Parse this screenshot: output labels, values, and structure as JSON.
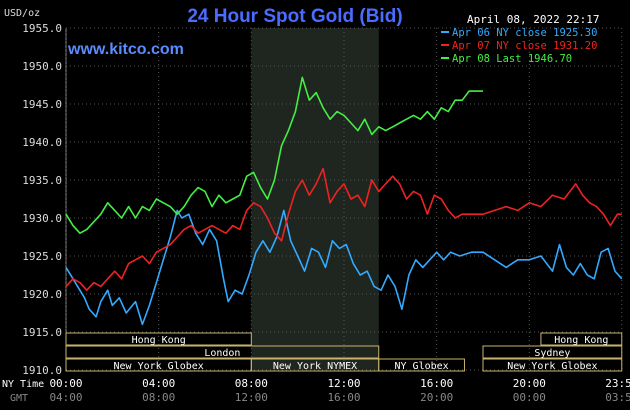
{
  "header": {
    "title": "24 Hour Spot Gold (Bid)",
    "units": "USD/oz",
    "datetime": "April 08, 2022 22:17",
    "watermark": "www.kitco.com"
  },
  "chart_data": {
    "type": "line",
    "title": "24 Hour Spot Gold (Bid)",
    "ylabel": "USD/oz",
    "ylim": [
      1910.0,
      1955.0
    ],
    "yticks": [
      "1955.0",
      "1950.0",
      "1945.0",
      "1940.0",
      "1935.0",
      "1930.0",
      "1925.0",
      "1920.0",
      "1915.0",
      "1910.0"
    ],
    "x_axis": {
      "ny_label": "NY Time",
      "gmt_label": "GMT",
      "ny_ticks": [
        "00:00",
        "04:00",
        "08:00",
        "12:00",
        "16:00",
        "20:00",
        "23:59"
      ],
      "gmt_ticks": [
        "04:00",
        "08:00",
        "12:00",
        "16:00",
        "20:00",
        "00:00",
        "03:59"
      ],
      "range_hours": [
        0,
        24
      ]
    },
    "grid": true,
    "legend_position": "top-right",
    "highlight_band": [
      8.0,
      13.5
    ],
    "series": [
      {
        "name": "Apr 06 NY close 1925.30",
        "color": "#33aaff",
        "x": [
          0,
          0.3,
          0.5,
          0.8,
          1.0,
          1.3,
          1.5,
          1.8,
          2.0,
          2.3,
          2.6,
          3.0,
          3.3,
          3.6,
          3.9,
          4.2,
          4.5,
          4.8,
          5.0,
          5.3,
          5.6,
          5.9,
          6.2,
          6.5,
          6.8,
          7.0,
          7.3,
          7.6,
          7.9,
          8.2,
          8.5,
          8.8,
          9.1,
          9.4,
          9.7,
          10.0,
          10.3,
          10.6,
          10.9,
          11.2,
          11.5,
          11.8,
          12.1,
          12.4,
          12.7,
          13.0,
          13.3,
          13.6,
          13.9,
          14.2,
          14.5,
          14.8,
          15.1,
          15.4,
          15.7,
          16.0,
          16.3,
          16.6,
          17.0,
          17.5,
          18.0,
          18.5,
          19.0,
          19.5,
          20.0,
          20.5,
          21.0,
          21.3,
          21.6,
          21.9,
          22.2,
          22.5,
          22.8,
          23.1,
          23.4,
          23.7,
          23.99
        ],
        "values": [
          1923.5,
          1922.0,
          1921.0,
          1919.5,
          1918.0,
          1917.0,
          1919.0,
          1920.5,
          1918.5,
          1919.5,
          1917.5,
          1919.0,
          1916.0,
          1918.5,
          1921.5,
          1924.5,
          1927.5,
          1931.0,
          1930.0,
          1930.5,
          1928.0,
          1926.5,
          1928.5,
          1927.0,
          1922.0,
          1919.0,
          1920.5,
          1920.0,
          1922.5,
          1925.5,
          1927.0,
          1925.5,
          1927.5,
          1931.0,
          1927.0,
          1925.0,
          1923.0,
          1926.0,
          1925.5,
          1923.5,
          1927.0,
          1926.0,
          1926.5,
          1924.0,
          1922.5,
          1923.0,
          1921.0,
          1920.5,
          1922.5,
          1921.0,
          1918.0,
          1922.5,
          1924.5,
          1923.5,
          1924.5,
          1925.5,
          1924.5,
          1925.5,
          1925.0,
          1925.5,
          1925.5,
          1924.5,
          1923.5,
          1924.5,
          1924.5,
          1925.0,
          1923.0,
          1926.5,
          1923.5,
          1922.5,
          1924.0,
          1922.5,
          1922.0,
          1925.5,
          1926.0,
          1923.0,
          1922.0
        ]
      },
      {
        "name": "Apr 07 NY close 1931.20",
        "color": "#ee2222",
        "x": [
          0,
          0.3,
          0.6,
          0.9,
          1.2,
          1.5,
          1.8,
          2.1,
          2.4,
          2.7,
          3.0,
          3.3,
          3.6,
          3.9,
          4.2,
          4.5,
          4.8,
          5.1,
          5.4,
          5.7,
          6.0,
          6.3,
          6.6,
          6.9,
          7.2,
          7.5,
          7.8,
          8.1,
          8.4,
          8.7,
          9.0,
          9.3,
          9.6,
          9.9,
          10.2,
          10.5,
          10.8,
          11.1,
          11.4,
          11.7,
          12.0,
          12.3,
          12.6,
          12.9,
          13.2,
          13.5,
          13.8,
          14.1,
          14.4,
          14.7,
          15.0,
          15.3,
          15.6,
          15.9,
          16.2,
          16.5,
          16.8,
          17.1,
          17.5,
          18.0,
          18.5,
          19.0,
          19.5,
          20.0,
          20.5,
          21.0,
          21.5,
          22.0,
          22.3,
          22.6,
          22.9,
          23.2,
          23.5,
          23.8,
          23.99
        ],
        "values": [
          1921.0,
          1922.0,
          1921.5,
          1920.5,
          1921.5,
          1921.0,
          1922.0,
          1923.0,
          1922.0,
          1924.0,
          1924.5,
          1925.0,
          1924.0,
          1925.5,
          1926.0,
          1926.5,
          1927.5,
          1928.5,
          1929.0,
          1928.0,
          1928.5,
          1929.0,
          1928.5,
          1928.0,
          1929.0,
          1928.5,
          1931.0,
          1932.0,
          1931.5,
          1930.0,
          1928.0,
          1927.0,
          1930.5,
          1933.5,
          1935.0,
          1933.0,
          1934.5,
          1936.5,
          1932.0,
          1933.5,
          1934.5,
          1932.5,
          1933.0,
          1931.5,
          1935.0,
          1933.5,
          1934.5,
          1935.5,
          1934.5,
          1932.5,
          1933.5,
          1933.0,
          1930.5,
          1933.0,
          1932.5,
          1931.0,
          1930.0,
          1930.5,
          1930.5,
          1930.5,
          1931.0,
          1931.5,
          1931.0,
          1932.0,
          1931.5,
          1933.0,
          1932.5,
          1934.5,
          1933.0,
          1932.0,
          1931.5,
          1930.5,
          1929.0,
          1930.5,
          1930.5
        ]
      },
      {
        "name": "Apr 08 Last 1946.70",
        "color": "#44ee44",
        "x": [
          0,
          0.3,
          0.6,
          0.9,
          1.2,
          1.5,
          1.8,
          2.1,
          2.4,
          2.7,
          3.0,
          3.3,
          3.6,
          3.9,
          4.2,
          4.5,
          4.8,
          5.1,
          5.4,
          5.7,
          6.0,
          6.3,
          6.6,
          6.9,
          7.2,
          7.5,
          7.8,
          8.1,
          8.4,
          8.7,
          9.0,
          9.3,
          9.6,
          9.9,
          10.2,
          10.5,
          10.8,
          11.1,
          11.4,
          11.7,
          12.0,
          12.3,
          12.6,
          12.9,
          13.2,
          13.5,
          13.8,
          14.1,
          14.4,
          14.7,
          15.0,
          15.3,
          15.6,
          15.9,
          16.2,
          16.5,
          16.8,
          17.1,
          17.4,
          17.7,
          18.0
        ],
        "values": [
          1930.5,
          1929.0,
          1928.0,
          1928.5,
          1929.5,
          1930.5,
          1932.0,
          1931.0,
          1930.0,
          1931.5,
          1930.0,
          1931.5,
          1931.0,
          1932.5,
          1932.0,
          1931.5,
          1930.5,
          1931.5,
          1933.0,
          1934.0,
          1933.5,
          1931.5,
          1933.0,
          1932.0,
          1932.5,
          1933.0,
          1935.5,
          1936.0,
          1934.0,
          1932.5,
          1935.0,
          1939.5,
          1941.5,
          1944.0,
          1948.5,
          1945.5,
          1946.5,
          1944.5,
          1943.0,
          1944.0,
          1943.5,
          1942.5,
          1941.5,
          1943.0,
          1941.0,
          1942.0,
          1941.5,
          1942.0,
          1942.5,
          1943.0,
          1943.5,
          1943.0,
          1944.0,
          1943.0,
          1944.5,
          1944.0,
          1945.5,
          1945.5,
          1946.7,
          1946.7,
          1946.7
        ]
      }
    ],
    "sessions": [
      {
        "name": "Hong Kong",
        "start": 0,
        "end": 8,
        "row": 0
      },
      {
        "name": "London",
        "start": 0,
        "end": 13.5,
        "row": 1
      },
      {
        "name": "New York Globex",
        "start": 0,
        "end": 8,
        "row": 2
      },
      {
        "name": "New York NYMEX",
        "start": 8,
        "end": 13.5,
        "row": 2
      },
      {
        "name": "NY Globex",
        "start": 13.5,
        "end": 17.2,
        "row": 2
      },
      {
        "name": "Hong Kong",
        "start": 20.5,
        "end": 23.99,
        "row": 0
      },
      {
        "name": "Sydney",
        "start": 18,
        "end": 23.99,
        "row": 1
      },
      {
        "name": "New York Globex",
        "start": 18,
        "end": 23.99,
        "row": 2
      }
    ]
  }
}
